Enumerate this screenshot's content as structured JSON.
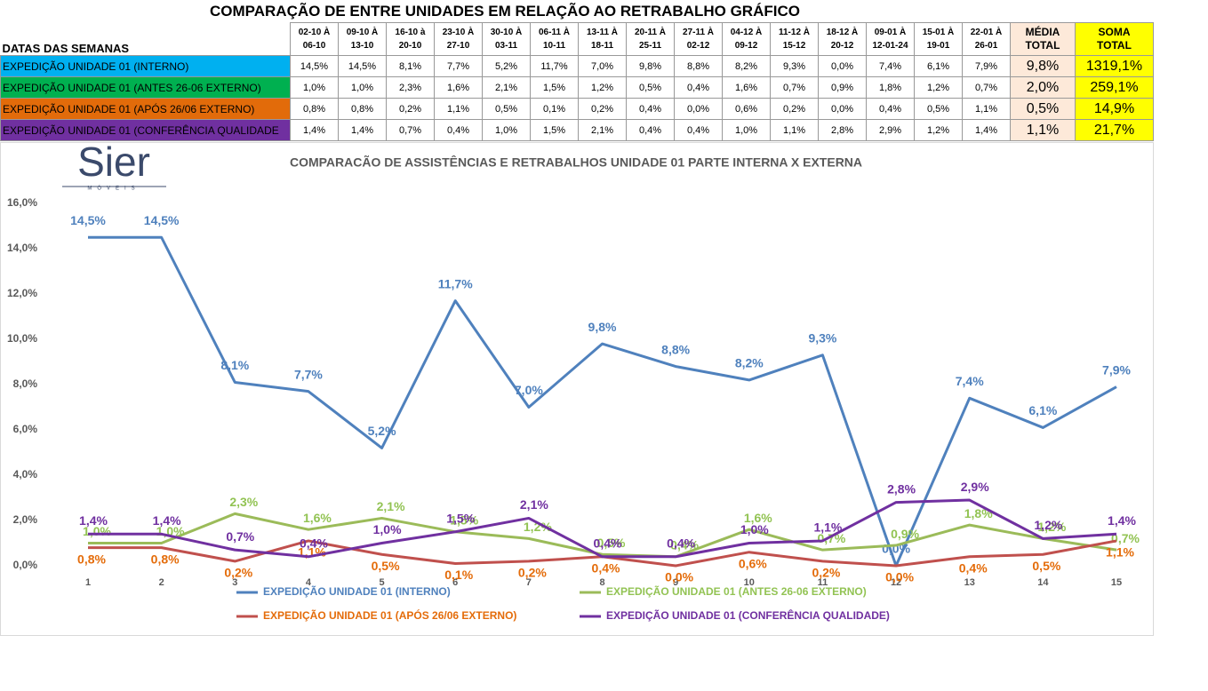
{
  "title": "COMPARAÇÃO DE ENTRE UNIDADES EM RELAÇÃO AO RETRABALHO GRÁFICO",
  "table": {
    "header": [
      "DATAS DAS SEMANAS",
      "02-10 À\n06-10",
      "09-10 À\n13-10",
      "16-10 à\n20-10",
      "23-10 À\n27-10",
      "30-10 À\n03-11",
      "06-11 À\n10-11",
      "13-11 À\n18-11",
      "20-11 À\n25-11",
      "27-11 À\n02-12",
      "04-12 À\n09-12",
      "11-12 À\n15-12",
      "18-12 À\n20-12",
      "09-01 À\n12-01-24",
      "15-01 À\n19-01",
      "22-01 À\n26-01",
      "MÉDIA\nTOTAL",
      "SOMA\nTOTAL"
    ],
    "rows": [
      [
        "EXPEDIÇÃO UNIDADE 01 (INTERNO)",
        "14,5%",
        "14,5%",
        "8,1%",
        "7,7%",
        "5,2%",
        "11,7%",
        "7,0%",
        "9,8%",
        "8,8%",
        "8,2%",
        "9,3%",
        "0,0%",
        "7,4%",
        "6,1%",
        "7,9%",
        "9,8%",
        "1319,1%"
      ],
      [
        "EXPEDIÇÃO UNIDADE 01 (ANTES 26-06 EXTERNO)",
        "1,0%",
        "1,0%",
        "2,3%",
        "1,6%",
        "2,1%",
        "1,5%",
        "1,2%",
        "0,5%",
        "0,4%",
        "1,6%",
        "0,7%",
        "0,9%",
        "1,8%",
        "1,2%",
        "0,7%",
        "2,0%",
        "259,1%"
      ],
      [
        "EXPEDIÇÃO UNIDADE 01 (APÓS 26/06 EXTERNO)",
        "0,8%",
        "0,8%",
        "0,2%",
        "1,1%",
        "0,5%",
        "0,1%",
        "0,2%",
        "0,4%",
        "0,0%",
        "0,6%",
        "0,2%",
        "0,0%",
        "0,4%",
        "0,5%",
        "1,1%",
        "0,5%",
        "14,9%"
      ],
      [
        "EXPEDIÇÃO UNIDADE 01 (CONFERÊNCIA QUALIDADE",
        "1,4%",
        "1,4%",
        "0,7%",
        "0,4%",
        "1,0%",
        "1,5%",
        "2,1%",
        "0,4%",
        "0,4%",
        "1,0%",
        "1,1%",
        "2,8%",
        "2,9%",
        "1,2%",
        "1,4%",
        "1,1%",
        "21,7%"
      ]
    ]
  },
  "logo": {
    "name": "Sier",
    "tagline": "MÓVEIS"
  },
  "chart_data": {
    "type": "line",
    "title": "COMPARACÃO DE ASSISTÊNCIAS E RETRABALHOS UNIDADE 01 PARTE INTERNA X EXTERNA",
    "categories": [
      "1",
      "2",
      "3",
      "4",
      "5",
      "6",
      "7",
      "8",
      "9",
      "10",
      "11",
      "12",
      "13",
      "14",
      "15"
    ],
    "ylim": [
      0,
      16
    ],
    "yticks": [
      {
        "value": 0,
        "label": "0,0%"
      },
      {
        "value": 2,
        "label": "2,0%"
      },
      {
        "value": 4,
        "label": "4,0%"
      },
      {
        "value": 6,
        "label": "6,0%"
      },
      {
        "value": 8,
        "label": "8,0%"
      },
      {
        "value": 10,
        "label": "10,0%"
      },
      {
        "value": 12,
        "label": "12,0%"
      },
      {
        "value": 14,
        "label": "14,0%"
      },
      {
        "value": 16,
        "label": "16,0%"
      }
    ],
    "grid": false,
    "legend": "bottom",
    "series": [
      {
        "name": "EXPEDIÇÃO UNIDADE 01 (INTERNO)",
        "color": "#4f81bd",
        "label_color": "#4f81bd",
        "values": [
          14.5,
          14.5,
          8.1,
          7.7,
          5.2,
          11.7,
          7.0,
          9.8,
          8.8,
          8.2,
          9.3,
          0.0,
          7.4,
          6.1,
          7.9
        ],
        "value_labels": [
          "14,5%",
          "14,5%",
          "8,1%",
          "7,7%",
          "5,2%",
          "11,7%",
          "7,0%",
          "9,8%",
          "8,8%",
          "8,2%",
          "9,3%",
          "0,0%",
          "7,4%",
          "6,1%",
          "7,9%"
        ]
      },
      {
        "name": "EXPEDIÇÃO UNIDADE 01 (ANTES 26-06 EXTERNO)",
        "color": "#9bbb59",
        "label_color": "#92c353",
        "values": [
          1.0,
          1.0,
          2.3,
          1.6,
          2.1,
          1.5,
          1.2,
          0.5,
          0.4,
          1.6,
          0.7,
          0.9,
          1.8,
          1.2,
          0.7
        ],
        "value_labels": [
          "1,0%",
          "1,0%",
          "2,3%",
          "1,6%",
          "2,1%",
          "1,5%",
          "1,2%",
          "0,5%",
          "0,4%",
          "1,6%",
          "0,7%",
          "0,9%",
          "1,8%",
          "1,2%",
          "0,7%"
        ]
      },
      {
        "name": "EXPEDIÇÃO UNIDADE 01 (APÓS 26/06 EXTERNO)",
        "color": "#c0504d",
        "label_color": "#e46c0a",
        "values": [
          0.8,
          0.8,
          0.2,
          1.1,
          0.5,
          0.1,
          0.2,
          0.4,
          0.0,
          0.6,
          0.2,
          0.0,
          0.4,
          0.5,
          1.1
        ],
        "value_labels": [
          "0,8%",
          "0,8%",
          "0,2%",
          "1,1%",
          "0,5%",
          "0,1%",
          "0,2%",
          "0,4%",
          "0,0%",
          "0,6%",
          "0,2%",
          "0,0%",
          "0,4%",
          "0,5%",
          "1,1%"
        ]
      },
      {
        "name": "EXPEDIÇÃO UNIDADE 01 (CONFERÊNCIA QUALIDADE)",
        "color": "#7030a0",
        "label_color": "#7030a0",
        "values": [
          1.4,
          1.4,
          0.7,
          0.4,
          1.0,
          1.5,
          2.1,
          0.4,
          0.4,
          1.0,
          1.1,
          2.8,
          2.9,
          1.2,
          1.4
        ],
        "value_labels": [
          "1,4%",
          "1,4%",
          "0,7%",
          "0,4%",
          "1,0%",
          "1,5%",
          "2,1%",
          "0,4%",
          "0,4%",
          "1,0%",
          "1,1%",
          "2,8%",
          "2,9%",
          "1,2%",
          "1,4%"
        ]
      }
    ]
  }
}
